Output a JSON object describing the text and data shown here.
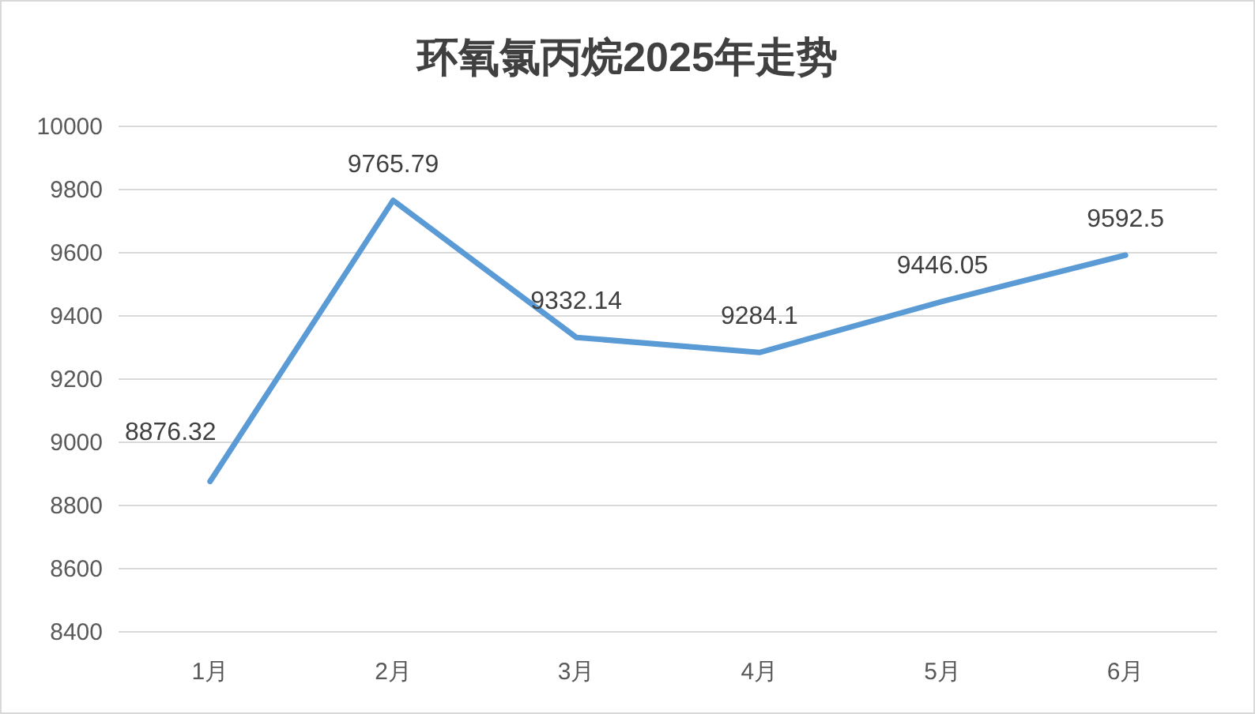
{
  "chart_data": {
    "type": "line",
    "title": "环氧氯丙烷2025年走势",
    "categories": [
      "1月",
      "2月",
      "3月",
      "4月",
      "5月",
      "6月"
    ],
    "series": [
      {
        "color": "#5b9bd5",
        "values": [
          8876.32,
          9765.79,
          9332.14,
          9284.1,
          9446.05,
          9592.5
        ]
      }
    ],
    "ylim": [
      8400,
      10000
    ],
    "yticks": [
      8400,
      8600,
      8800,
      9000,
      9200,
      9400,
      9600,
      9800,
      10000
    ],
    "grid": "y",
    "data_labels": true,
    "marker": "none",
    "line_style": "solid"
  }
}
